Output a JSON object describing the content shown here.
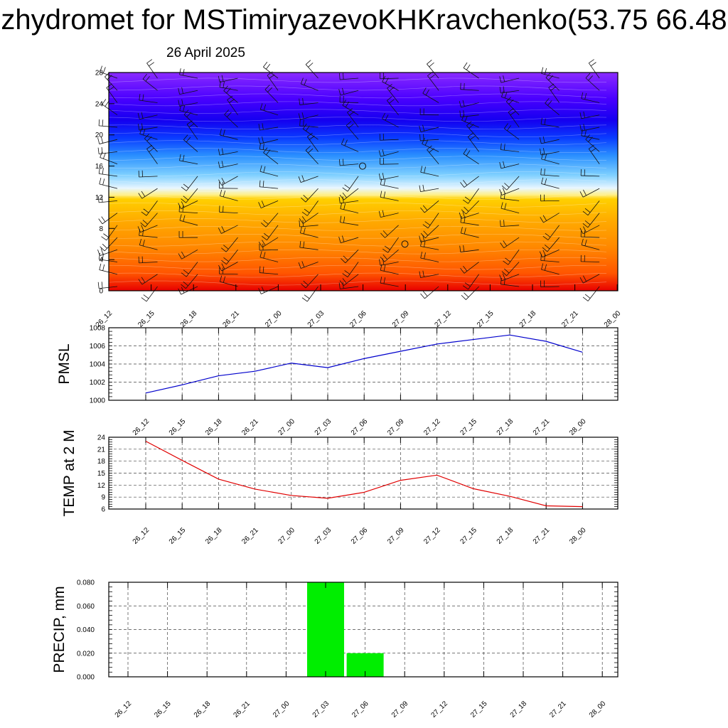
{
  "title": "zhydromet for MSTimiryazevoKHKravchenko(53.75 66.48",
  "subtitle": "26 April 2025",
  "chart_data": [
    {
      "type": "heatmap",
      "title": "",
      "x_ticks": [
        "26_12",
        "26_15",
        "26_18",
        "26_21",
        "27_00",
        "27_03",
        "27_06",
        "27_09",
        "27_12",
        "27_15",
        "27_18",
        "27_21",
        "28_00"
      ],
      "y_ticks": [
        "0",
        "4",
        "8",
        "12",
        "16",
        "20",
        "24",
        "28"
      ],
      "ylim": [
        0,
        28
      ],
      "colormap": [
        "#e80000",
        "#ff5500",
        "#ff8800",
        "#ffaa00",
        "#ffd000",
        "#fff08a",
        "#e8f6ff",
        "#7fd0ff",
        "#2a8fff",
        "#0a3cff",
        "#1400f0",
        "#4a00ff",
        "#8a2bff"
      ],
      "wind_barbs": true,
      "calm_markers": [
        {
          "x": "27_06",
          "level": 16
        },
        {
          "x": "27_09",
          "level": 6
        }
      ]
    },
    {
      "type": "line",
      "ylabel": "PMSL",
      "color": "#0000cc",
      "x": [
        "26_12",
        "26_15",
        "26_18",
        "26_21",
        "27_00",
        "27_03",
        "27_06",
        "27_09",
        "27_12",
        "27_15",
        "27_18",
        "27_21",
        "28_00"
      ],
      "values": [
        1000.8,
        1001.7,
        1002.7,
        1003.2,
        1004.1,
        1003.6,
        1004.6,
        1005.4,
        1006.2,
        1006.7,
        1007.2,
        1006.5,
        1005.3
      ],
      "y_ticks": [
        "1000",
        "1002",
        "1004",
        "1006",
        "1008"
      ],
      "ylim": [
        1000,
        1008
      ],
      "grid": true
    },
    {
      "type": "line",
      "ylabel": "TEMP at 2 M",
      "color": "#e00000",
      "x": [
        "26_12",
        "26_15",
        "26_18",
        "26_21",
        "27_00",
        "27_03",
        "27_06",
        "27_09",
        "27_12",
        "27_15",
        "27_18",
        "27_21",
        "28_00"
      ],
      "values": [
        23.0,
        18.2,
        13.5,
        11.0,
        9.4,
        8.7,
        10.2,
        13.2,
        14.5,
        11.1,
        9.2,
        6.8,
        6.6
      ],
      "y_ticks": [
        "6",
        "9",
        "12",
        "15",
        "18",
        "21",
        "24"
      ],
      "ylim": [
        6,
        24
      ],
      "grid": true
    },
    {
      "type": "bar",
      "ylabel": "PRECIP, mm",
      "color": "#00ee00",
      "x": [
        "26_12",
        "26_15",
        "26_18",
        "26_21",
        "27_00",
        "27_03",
        "27_06",
        "27_09",
        "27_12",
        "27_15",
        "27_18",
        "27_21",
        "28_00"
      ],
      "values": [
        0,
        0,
        0,
        0,
        0,
        0.08,
        0.02,
        0,
        0,
        0,
        0,
        0,
        0
      ],
      "y_ticks": [
        "0.000",
        "0.020",
        "0.040",
        "0.060",
        "0.080"
      ],
      "ylim": [
        0,
        0.08
      ],
      "grid": true
    }
  ]
}
